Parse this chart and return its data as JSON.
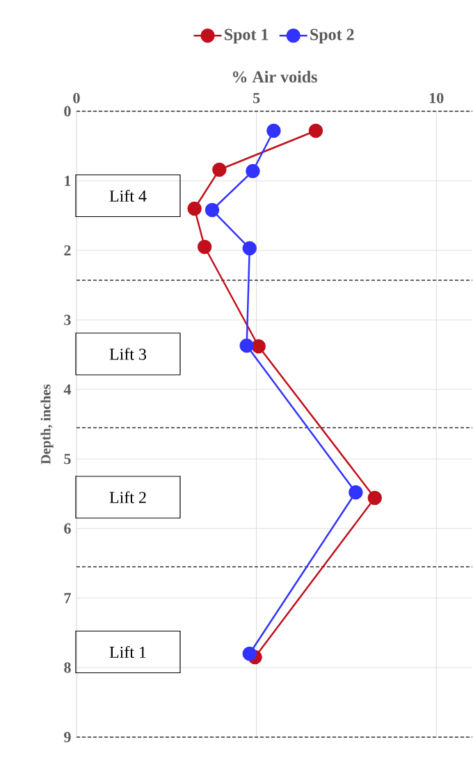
{
  "chart_data": {
    "type": "line",
    "xlabel": "% Air voids",
    "ylabel": "Depth, inches",
    "series": [
      {
        "name": "Spot 1",
        "color": "#c0101c",
        "x": [
          6.65,
          3.97,
          3.28,
          3.56,
          5.06,
          8.29,
          4.96
        ],
        "values": [
          0.28,
          0.84,
          1.4,
          1.95,
          3.38,
          5.56,
          7.85
        ]
      },
      {
        "name": "Spot 2",
        "color": "#3333ff",
        "x": [
          5.48,
          4.9,
          3.77,
          4.81,
          4.73,
          7.76,
          4.81
        ],
        "values": [
          0.28,
          0.86,
          1.42,
          1.97,
          3.37,
          5.48,
          7.8
        ]
      }
    ],
    "xlim": [
      0,
      11
    ],
    "ylim": [
      9,
      0
    ],
    "xticks": [
      0,
      5,
      10
    ],
    "yticks": [
      0,
      1,
      2,
      3,
      4,
      5,
      6,
      7,
      8,
      9
    ],
    "grid": true,
    "legend": "top",
    "marker": "circle",
    "line_style": "solid",
    "ref_lines": [
      {
        "axis": "y",
        "value": 0,
        "color": "#333333",
        "line_style": "dashed"
      },
      {
        "axis": "y",
        "value": 2.43,
        "color": "#333333",
        "line_style": "dashed"
      },
      {
        "axis": "y",
        "value": 4.55,
        "color": "#333333",
        "line_style": "dashed"
      },
      {
        "axis": "y",
        "value": 6.55,
        "color": "#333333",
        "line_style": "dashed"
      },
      {
        "axis": "y",
        "value": 9,
        "color": "#333333",
        "line_style": "dashed"
      }
    ],
    "annotations": [
      "Lift 4",
      "Lift 3",
      "Lift 2",
      "Lift 1"
    ]
  }
}
